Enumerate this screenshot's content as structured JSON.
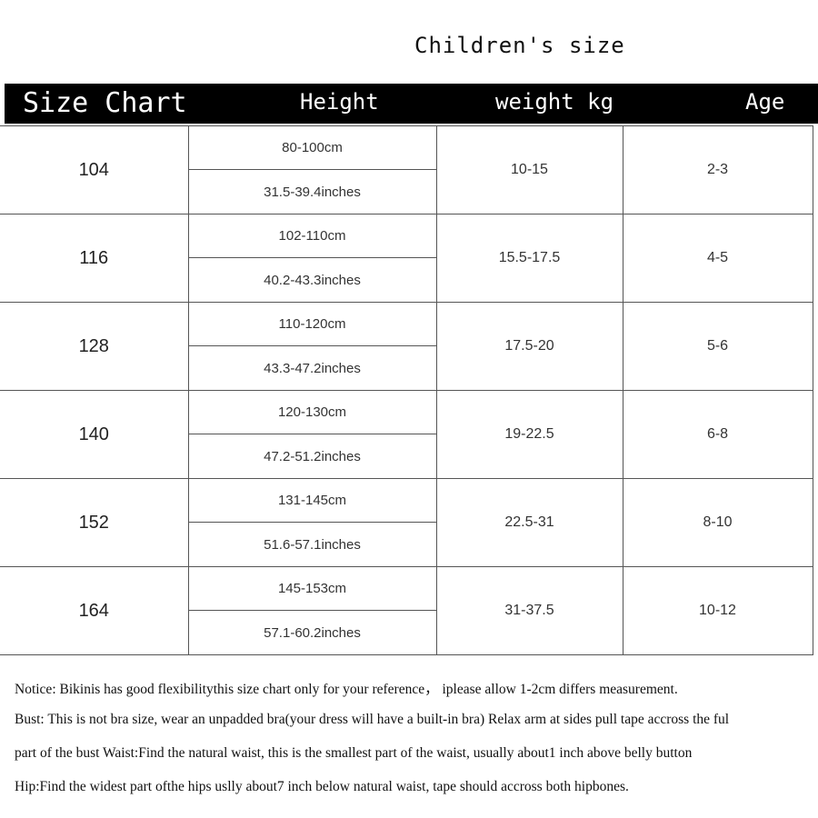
{
  "title": "Children's size",
  "header": {
    "size": "Size Chart",
    "height": "Height",
    "weight": "weight kg",
    "age": "Age"
  },
  "rows": [
    {
      "size": "104",
      "cm": "80-100cm",
      "inches": "31.5-39.4inches",
      "weight": "10-15",
      "age": "2-3"
    },
    {
      "size": "116",
      "cm": "102-110cm",
      "inches": "40.2-43.3inches",
      "weight": "15.5-17.5",
      "age": "4-5"
    },
    {
      "size": "128",
      "cm": "110-120cm",
      "inches": "43.3-47.2inches",
      "weight": "17.5-20",
      "age": "5-6"
    },
    {
      "size": "140",
      "cm": "120-130cm",
      "inches": "47.2-51.2inches",
      "weight": "19-22.5",
      "age": "6-8"
    },
    {
      "size": "152",
      "cm": "131-145cm",
      "inches": "51.6-57.1inches",
      "weight": "22.5-31",
      "age": "8-10"
    },
    {
      "size": "164",
      "cm": "145-153cm",
      "inches": "57.1-60.2inches",
      "weight": "31-37.5",
      "age": "10-12"
    }
  ],
  "notes": [
    "Notice: Bikinis has good flexibilitythis size chart only for your reference，  iplease allow 1-2cm differs measurement.",
    " Bust: This is not bra size, wear an unpadded bra(your dress will have a built-in bra) Relax arm at sides pull tape accross the ful",
    "part of the bust Waist:Find the natural waist, this is the smallest part of the waist, usually about1  inch above belly button",
    " Hip:Find the widest part ofthe hips uslly about7 inch below natural waist, tape should accross both hipbones."
  ]
}
